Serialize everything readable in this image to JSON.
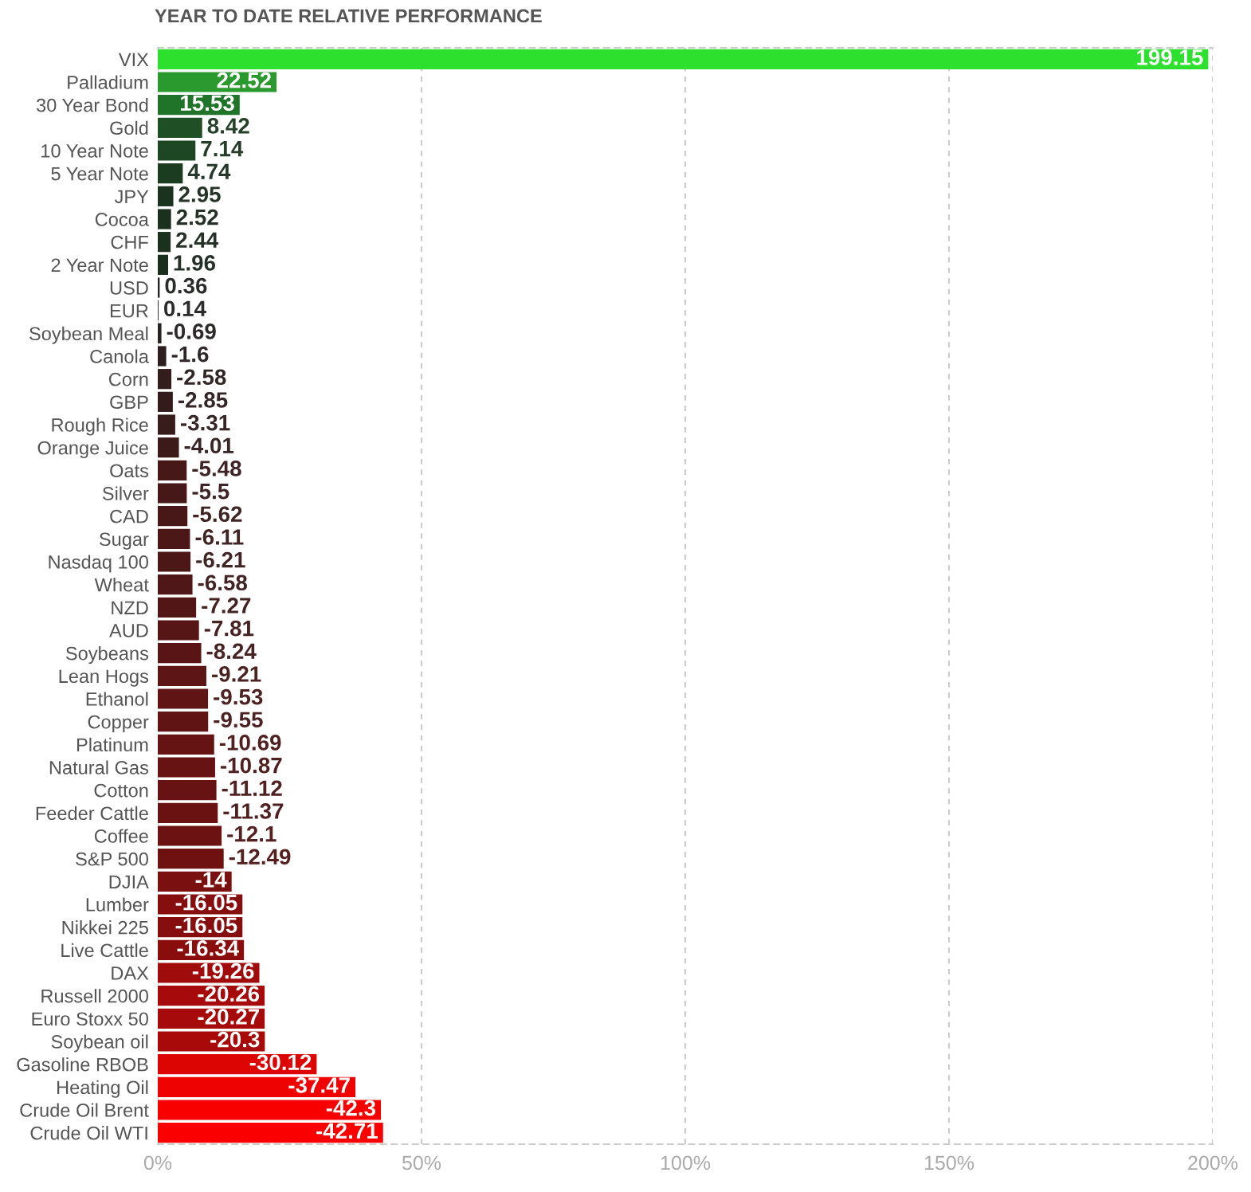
{
  "chart_data": {
    "type": "bar",
    "orientation": "horizontal",
    "title": "YEAR TO DATE RELATIVE PERFORMANCE",
    "categories": [
      "VIX",
      "Palladium",
      "30 Year Bond",
      "Gold",
      "10 Year Note",
      "5 Year Note",
      "JPY",
      "Cocoa",
      "CHF",
      "2 Year Note",
      "USD",
      "EUR",
      "Soybean Meal",
      "Canola",
      "Corn",
      "GBP",
      "Rough Rice",
      "Orange Juice",
      "Oats",
      "Silver",
      "CAD",
      "Sugar",
      "Nasdaq 100",
      "Wheat",
      "NZD",
      "AUD",
      "Soybeans",
      "Lean Hogs",
      "Ethanol",
      "Copper",
      "Platinum",
      "Natural Gas",
      "Cotton",
      "Feeder Cattle",
      "Coffee",
      "S&P 500",
      "DJIA",
      "Lumber",
      "Nikkei 225",
      "Live Cattle",
      "DAX",
      "Russell 2000",
      "Euro Stoxx 50",
      "Soybean oil",
      "Gasoline RBOB",
      "Heating Oil",
      "Crude Oil Brent",
      "Crude Oil WTI"
    ],
    "values": [
      199.15,
      22.52,
      15.53,
      8.42,
      7.14,
      4.74,
      2.95,
      2.52,
      2.44,
      1.96,
      0.36,
      0.14,
      -0.69,
      -1.6,
      -2.58,
      -2.85,
      -3.31,
      -4.01,
      -5.48,
      -5.5,
      -5.62,
      -6.11,
      -6.21,
      -6.58,
      -7.27,
      -7.81,
      -8.24,
      -9.21,
      -9.53,
      -9.55,
      -10.69,
      -10.87,
      -11.12,
      -11.37,
      -12.1,
      -12.49,
      -14,
      -16.05,
      -16.05,
      -16.34,
      -19.26,
      -20.26,
      -20.27,
      -20.3,
      -30.12,
      -37.47,
      -42.3,
      -42.71
    ],
    "base": [
      0,
      0,
      0,
      0,
      0,
      0,
      0,
      0,
      0,
      0,
      0,
      0,
      0.69,
      1.6,
      2.58,
      2.85,
      3.31,
      4.01,
      5.48,
      5.5,
      5.62,
      6.11,
      6.21,
      6.58,
      7.27,
      7.81,
      8.24,
      9.21,
      9.53,
      9.55,
      10.69,
      10.87,
      11.12,
      11.37,
      12.1,
      12.49,
      14,
      16.05,
      16.05,
      16.34,
      19.26,
      20.26,
      20.27,
      20.3,
      30.12,
      37.47,
      42.3,
      42.71
    ],
    "colors": [
      "#2ee02e",
      "#2a9a2e",
      "#20742a",
      "#1e4f25",
      "#1d4623",
      "#1c3c21",
      "#1b331e",
      "#1b311e",
      "#1b301d",
      "#1a2e1c",
      "#222622",
      "#252525",
      "#2a2222",
      "#2c1e1e",
      "#321c1c",
      "#341b1b",
      "#381b1b",
      "#3c1a1a",
      "#471818",
      "#471818",
      "#481818",
      "#4b1717",
      "#4c1717",
      "#4f1717",
      "#531616",
      "#561616",
      "#591515",
      "#5e1515",
      "#601414",
      "#601414",
      "#661313",
      "#671313",
      "#681313",
      "#6a1212",
      "#6d1212",
      "#701111",
      "#7a1010",
      "#870e0e",
      "#870e0e",
      "#890d0d",
      "#a00b0b",
      "#a70a0a",
      "#a70a0a",
      "#a80a0a",
      "#dd0404",
      "#ee0202",
      "#f80000",
      "#fa0000"
    ],
    "xlim": [
      0,
      200
    ],
    "xticks": [
      {
        "value": 0,
        "label": "0%"
      },
      {
        "value": 50,
        "label": "50%"
      },
      {
        "value": 100,
        "label": "100%"
      },
      {
        "value": 150,
        "label": "150%"
      },
      {
        "value": 200,
        "label": "200%"
      }
    ],
    "grid": "x",
    "data_labels": true,
    "legend": false
  }
}
